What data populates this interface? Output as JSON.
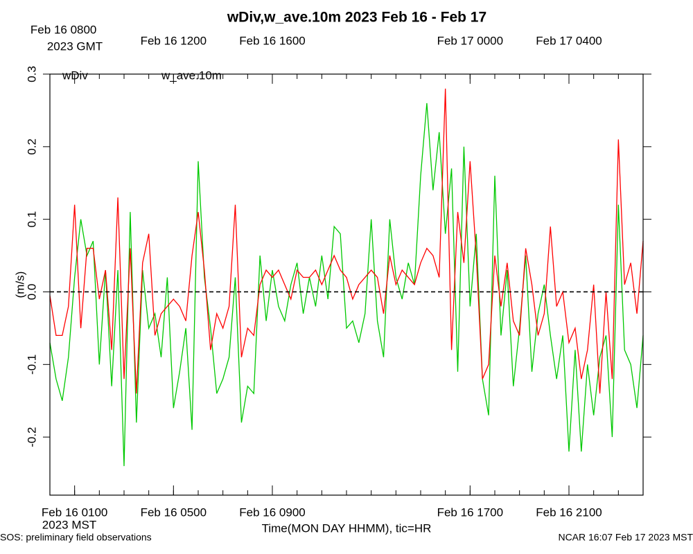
{
  "chart_data": {
    "type": "line",
    "title": "wDiv,w_ave.10m 2023 Feb 16 - Feb 17",
    "xlabel": "Time(MON DAY HHMM), tic=HR",
    "ylabel": "(m/s)",
    "x_note": "2023 MST",
    "x2_note": "2023 GMT",
    "footer_left": "SOS: preliminary field observations",
    "footer_right": "NCAR 16:07 Feb 17 2023 MST",
    "xlim": [
      0,
      24
    ],
    "ylim": [
      -0.28,
      0.3
    ],
    "xticks": [
      {
        "value": 1,
        "label": "Feb 16 0100"
      },
      {
        "value": 5,
        "label": "Feb 16 0500"
      },
      {
        "value": 9,
        "label": "Feb 16 0900"
      },
      {
        "value": 17,
        "label": "Feb 16 1700"
      },
      {
        "value": 21,
        "label": "Feb 16 2100"
      }
    ],
    "x2ticks": [
      {
        "value": 1,
        "label": "Feb 16 0800"
      },
      {
        "value": 5,
        "label": "Feb 16 1200"
      },
      {
        "value": 9,
        "label": "Feb 16 1600"
      },
      {
        "value": 17,
        "label": "Feb 17 0000"
      },
      {
        "value": 21,
        "label": "Feb 17 0400"
      }
    ],
    "xminorticks": [
      0,
      1,
      2,
      3,
      4,
      5,
      6,
      7,
      8,
      9,
      10,
      11,
      12,
      13,
      14,
      15,
      16,
      17,
      18,
      19,
      20,
      21,
      22,
      23,
      24
    ],
    "yticks": [
      -0.2,
      -0.1,
      {
        "value": 0,
        "label": "0.0"
      },
      0.1,
      0.2,
      0.3
    ],
    "reference_line": 0,
    "x": [
      0,
      0.25,
      0.5,
      0.75,
      1,
      1.25,
      1.5,
      1.75,
      2,
      2.25,
      2.5,
      2.75,
      3,
      3.25,
      3.5,
      3.75,
      4,
      4.25,
      4.5,
      4.75,
      5,
      5.25,
      5.5,
      5.75,
      6,
      6.25,
      6.5,
      6.75,
      7,
      7.25,
      7.5,
      7.75,
      8,
      8.25,
      8.5,
      8.75,
      9,
      9.25,
      9.5,
      9.75,
      10,
      10.25,
      10.5,
      10.75,
      11,
      11.25,
      11.5,
      11.75,
      12,
      12.25,
      12.5,
      12.75,
      13,
      13.25,
      13.5,
      13.75,
      14,
      14.25,
      14.5,
      14.75,
      15,
      15.25,
      15.5,
      15.75,
      16,
      16.25,
      16.5,
      16.75,
      17,
      17.25,
      17.5,
      17.75,
      18,
      18.25,
      18.5,
      18.75,
      19,
      19.25,
      19.5,
      19.75,
      20,
      20.25,
      20.5,
      20.75,
      21,
      21.25,
      21.5,
      21.75,
      22,
      22.25,
      22.5,
      22.75,
      23,
      23.25,
      23.5,
      23.75,
      24
    ],
    "series": [
      {
        "name": "w_ave.10m",
        "color": "#00c800",
        "values": [
          -0.07,
          -0.12,
          -0.15,
          -0.09,
          0.02,
          0.1,
          0.05,
          0.07,
          -0.1,
          0.03,
          -0.13,
          0.03,
          -0.24,
          0.11,
          -0.18,
          0.03,
          -0.05,
          -0.03,
          -0.09,
          0.02,
          -0.16,
          -0.11,
          -0.05,
          -0.19,
          0.18,
          0.02,
          -0.05,
          -0.14,
          -0.12,
          -0.09,
          0.02,
          -0.18,
          -0.13,
          -0.14,
          0.05,
          -0.04,
          0.03,
          -0.02,
          -0.04,
          0.01,
          0.04,
          -0.03,
          0.02,
          -0.02,
          0.05,
          -0.01,
          0.09,
          0.08,
          -0.05,
          -0.04,
          -0.07,
          -0.03,
          0.1,
          -0.04,
          -0.09,
          0.1,
          0.02,
          -0.01,
          0.04,
          0.01,
          0.16,
          0.26,
          0.14,
          0.22,
          0.08,
          0.17,
          -0.11,
          0.2,
          -0.02,
          0.08,
          -0.12,
          -0.17,
          0.16,
          -0.06,
          0.03,
          -0.13,
          -0.05,
          0.05,
          -0.11,
          -0.03,
          0.01,
          -0.06,
          -0.12,
          -0.06,
          -0.22,
          -0.08,
          -0.22,
          -0.1,
          -0.17,
          -0.09,
          -0.06,
          -0.2,
          0.12,
          -0.08,
          -0.1,
          -0.16,
          -0.06
        ]
      },
      {
        "name": "wDiv",
        "color": "#ff0000",
        "values": [
          -0.005,
          -0.06,
          -0.06,
          -0.02,
          0.12,
          -0.05,
          0.06,
          0.06,
          -0.01,
          0.03,
          -0.08,
          0.13,
          -0.12,
          0.06,
          -0.14,
          0.04,
          0.08,
          -0.06,
          -0.03,
          -0.02,
          -0.01,
          -0.02,
          -0.04,
          0.05,
          0.11,
          0.03,
          -0.08,
          -0.03,
          -0.05,
          -0.02,
          0.12,
          -0.09,
          -0.05,
          -0.06,
          0.01,
          0.03,
          0.02,
          0.03,
          0.01,
          -0.01,
          0.03,
          0.02,
          0.02,
          0.03,
          0.01,
          0.03,
          0.05,
          0.03,
          0.02,
          -0.01,
          0.01,
          0.02,
          0.03,
          0.02,
          -0.03,
          0.05,
          0.01,
          0.03,
          0.02,
          0.01,
          0.04,
          0.06,
          0.05,
          0.02,
          0.28,
          -0.08,
          0.11,
          0.04,
          0.18,
          0.05,
          -0.12,
          -0.1,
          0.05,
          -0.02,
          0.04,
          -0.04,
          -0.06,
          0.06,
          0.01,
          -0.06,
          -0.03,
          0.09,
          -0.02,
          0,
          -0.07,
          -0.05,
          -0.12,
          -0.08,
          0.01,
          -0.14,
          0,
          -0.12,
          0.21,
          0.01,
          0.04,
          -0.03,
          0.07
        ]
      }
    ],
    "legend_order": [
      1,
      0
    ]
  }
}
